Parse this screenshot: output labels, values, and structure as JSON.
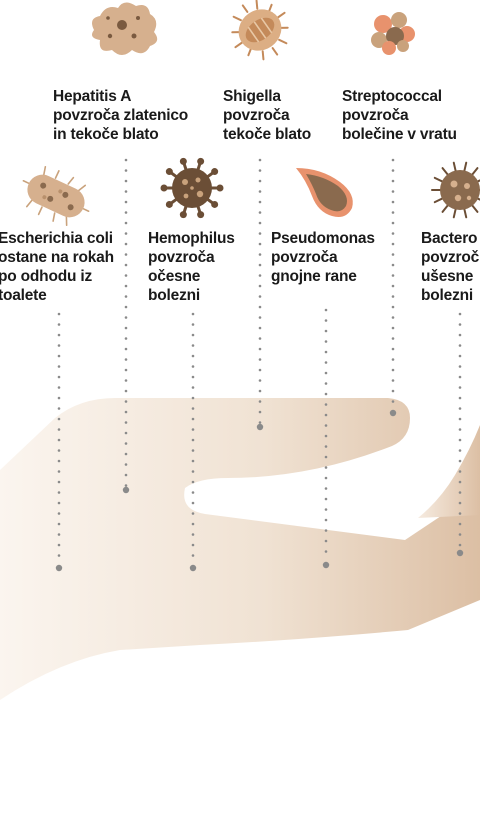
{
  "diagram": {
    "bacteria": [
      {
        "id": "hepatitis-a",
        "name": "Hepatitis A",
        "lines": [
          "povzroča zlatenico",
          "in tekoče blato"
        ],
        "icon": "amoeba-icon"
      },
      {
        "id": "shigella",
        "name": "Shigella",
        "lines": [
          "povzroča",
          "tekoče blato"
        ],
        "icon": "ciliate-icon"
      },
      {
        "id": "streptococcal",
        "name": "Streptococcal",
        "lines": [
          "povzroča",
          "bolečine v vratu"
        ],
        "icon": "cell-cluster-icon"
      },
      {
        "id": "escherichia-coli",
        "name": "Escherichia coli",
        "lines": [
          "ostane na rokah",
          "po odhodu iz",
          "toalete"
        ],
        "icon": "rod-bacterium-icon"
      },
      {
        "id": "hemophilus",
        "name": "Hemophilus",
        "lines": [
          "povzroča",
          "očesne",
          "bolezni"
        ],
        "icon": "virus-icon"
      },
      {
        "id": "pseudomonas",
        "name": "Pseudomonas",
        "lines": [
          "povzroča",
          "gnojne rane"
        ],
        "icon": "teardrop-bacterium-icon"
      },
      {
        "id": "bacteroides",
        "name": "Bactero",
        "lines": [
          "povzroč",
          "ušesne",
          "bolezni"
        ],
        "icon": "spiky-cell-icon"
      }
    ],
    "colors": {
      "hand_light": "#fbf4ee",
      "hand_dark": "#ddc0a6",
      "dots": "#8a8a8a",
      "icon_main": "#c9a27c",
      "icon_dark": "#6b4e36",
      "icon_accent": "#e8926d"
    }
  }
}
